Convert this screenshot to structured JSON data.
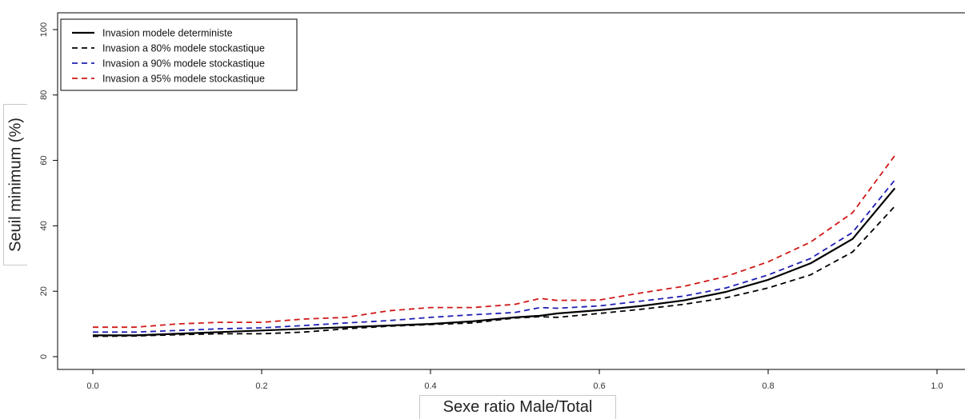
{
  "chart_data": {
    "type": "line",
    "title": "",
    "xlabel": "Sexe ratio Male/Total",
    "ylabel": "Seuil minimum (%)",
    "xlim": [
      0,
      1
    ],
    "ylim": [
      0,
      100
    ],
    "x_ticks": [
      "0.0",
      "0.2",
      "0.4",
      "0.6",
      "0.8",
      "1.0"
    ],
    "y_ticks": [
      "0",
      "20",
      "40",
      "60",
      "80",
      "100"
    ],
    "legend_position": "top-left",
    "grid": false,
    "x": [
      0.0,
      0.05,
      0.1,
      0.15,
      0.2,
      0.25,
      0.3,
      0.35,
      0.4,
      0.45,
      0.5,
      0.53,
      0.55,
      0.6,
      0.65,
      0.7,
      0.75,
      0.8,
      0.85,
      0.9,
      0.95
    ],
    "series": [
      {
        "name": "Invasion modele deterministe",
        "color": "#000000",
        "dash": "solid",
        "values": [
          6.5,
          6.5,
          7.0,
          7.5,
          8.0,
          8.5,
          9.0,
          9.5,
          10.0,
          10.8,
          12.0,
          12.5,
          13.2,
          14.2,
          15.5,
          17.2,
          19.8,
          23.5,
          28.5,
          36.0,
          51.5
        ]
      },
      {
        "name": "Invasion a 80% modele stockastique",
        "color": "#000000",
        "dash": "dashed",
        "values": [
          6.2,
          6.3,
          6.7,
          7.0,
          7.0,
          7.5,
          8.5,
          9.3,
          9.8,
          10.3,
          11.8,
          12.2,
          12.0,
          13.2,
          14.5,
          16.0,
          18.0,
          21.0,
          25.0,
          32.0,
          46.0
        ]
      },
      {
        "name": "Invasion a 90% modele stockastique",
        "color": "#1f1fb4",
        "dash": "dashed",
        "values": [
          7.5,
          7.5,
          8.0,
          8.5,
          8.8,
          9.5,
          10.3,
          11.0,
          12.0,
          12.8,
          13.5,
          15.0,
          14.8,
          15.5,
          17.0,
          18.5,
          21.0,
          25.0,
          30.0,
          38.0,
          54.0
        ]
      },
      {
        "name": "Invasion a 95% modele stockastique",
        "color": "#d01818",
        "dash": "dashed",
        "values": [
          9.0,
          9.0,
          10.0,
          10.5,
          10.5,
          11.5,
          12.0,
          14.0,
          15.0,
          15.0,
          16.0,
          17.8,
          17.2,
          17.3,
          19.5,
          21.5,
          24.5,
          29.0,
          35.0,
          44.0,
          61.5
        ]
      }
    ]
  }
}
